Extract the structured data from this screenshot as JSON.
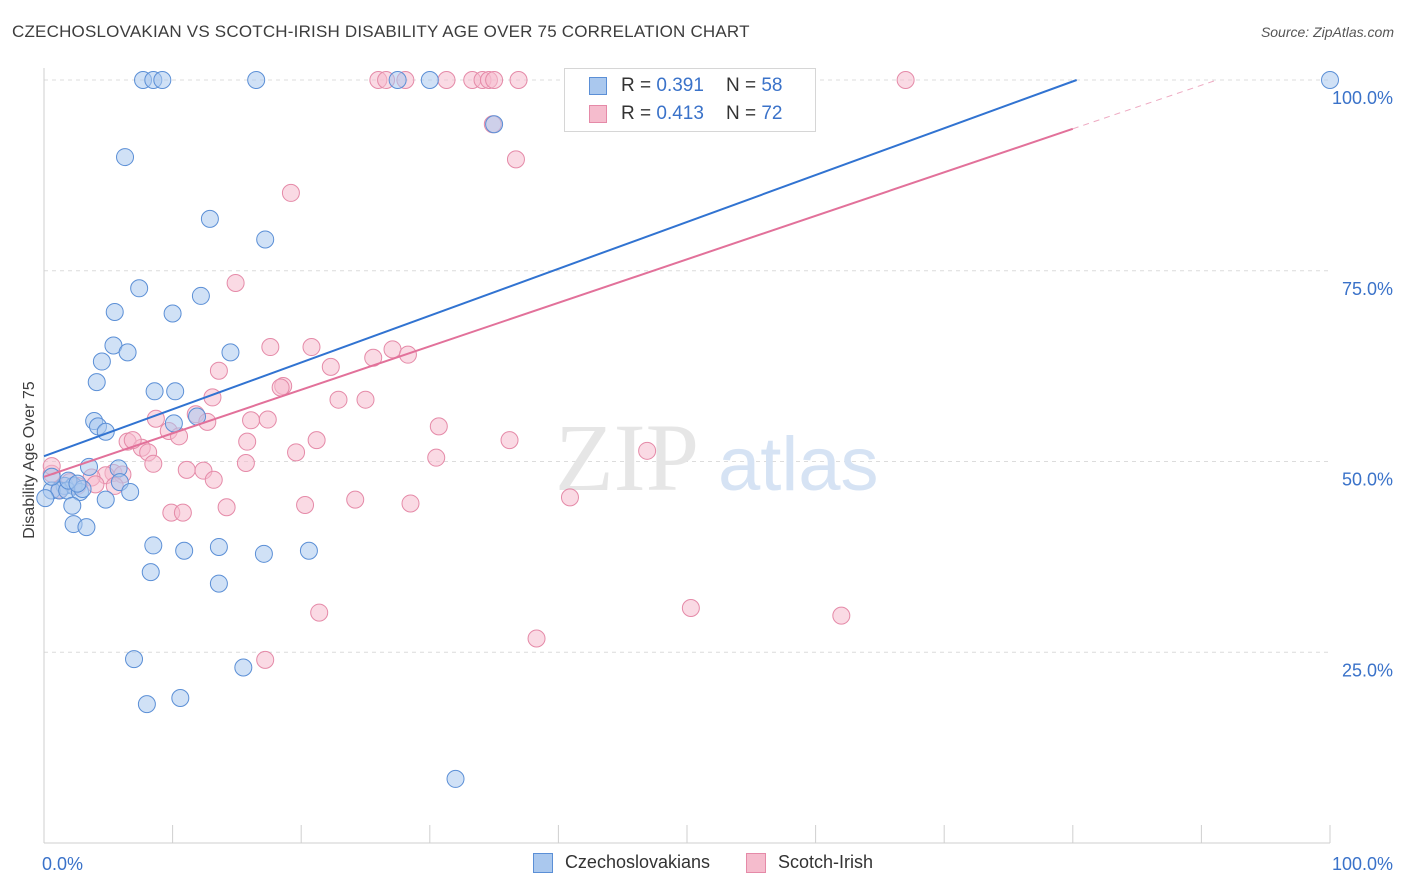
{
  "title": "CZECHOSLOVAKIAN VS SCOTCH-IRISH DISABILITY AGE OVER 75 CORRELATION CHART",
  "source": "Source: ZipAtlas.com",
  "watermark": {
    "zip": "ZIP",
    "atlas": "atlas"
  },
  "legend": {
    "rows": [
      {
        "r_label": "R =",
        "r_value": "0.391",
        "n_label": "N =",
        "n_value": "58"
      },
      {
        "r_label": "R =",
        "r_value": "0.413",
        "n_label": "N =",
        "n_value": "72"
      }
    ]
  },
  "bottom_legend": [
    "Czechoslovakians",
    "Scotch-Irish"
  ],
  "colors": {
    "blue_fill": "#aac8ee",
    "blue_stroke": "#5b8fd6",
    "blue_line": "#3173d1",
    "pink_fill": "#f5bccd",
    "pink_stroke": "#e58aa8",
    "pink_line": "#e2719a",
    "tick_label": "#3a72c9",
    "grid": "#dcdcdc"
  },
  "chart_data": {
    "type": "scatter",
    "title": "CZECHOSLOVAKIAN VS SCOTCH-IRISH DISABILITY AGE OVER 75 CORRELATION CHART",
    "xlabel": "",
    "ylabel": "Disability Age Over 75",
    "xlim": [
      0,
      100
    ],
    "ylim": [
      0,
      100
    ],
    "x_tick_labels": [
      "0.0%",
      "100.0%"
    ],
    "y_tick_labels": [
      "25.0%",
      "50.0%",
      "75.0%",
      "100.0%"
    ],
    "y_ticks": [
      25,
      50,
      75,
      100
    ],
    "grid": true,
    "series": [
      {
        "name": "Czechoslovakians",
        "r": 0.391,
        "n": 58,
        "trend": {
          "x": [
            0,
            80.3
          ],
          "y": [
            50.7,
            100
          ]
        },
        "points": [
          [
            7.7,
            100
          ],
          [
            8.5,
            100
          ],
          [
            9.2,
            100
          ],
          [
            16.5,
            100
          ],
          [
            27.5,
            100
          ],
          [
            30,
            100
          ],
          [
            100,
            100
          ],
          [
            35,
            94.2
          ],
          [
            6.3,
            89.9
          ],
          [
            12.9,
            81.8
          ],
          [
            17.2,
            79.1
          ],
          [
            7.4,
            72.7
          ],
          [
            12.2,
            71.7
          ],
          [
            5.5,
            69.6
          ],
          [
            10,
            69.4
          ],
          [
            5.4,
            65.2
          ],
          [
            6.5,
            64.3
          ],
          [
            14.5,
            64.3
          ],
          [
            4.5,
            63.1
          ],
          [
            4.1,
            60.4
          ],
          [
            8.6,
            59.2
          ],
          [
            10.2,
            59.2
          ],
          [
            11.9,
            55.9
          ],
          [
            3.9,
            55.3
          ],
          [
            10.1,
            55
          ],
          [
            4.2,
            54.6
          ],
          [
            4.8,
            53.9
          ],
          [
            3.5,
            49.3
          ],
          [
            5.8,
            49.1
          ],
          [
            5.9,
            47.3
          ],
          [
            1.6,
            46.8
          ],
          [
            2.3,
            46.8
          ],
          [
            0.6,
            46.2
          ],
          [
            1.2,
            46.2
          ],
          [
            1.8,
            46.2
          ],
          [
            2.8,
            46
          ],
          [
            3,
            46.4
          ],
          [
            6.7,
            46
          ],
          [
            0.1,
            45.2
          ],
          [
            4.8,
            45
          ],
          [
            2.2,
            44.2
          ],
          [
            2.3,
            41.8
          ],
          [
            3.3,
            41.4
          ],
          [
            8.5,
            39
          ],
          [
            10.9,
            38.3
          ],
          [
            13.6,
            38.8
          ],
          [
            17.1,
            37.9
          ],
          [
            20.6,
            38.3
          ],
          [
            8.3,
            35.5
          ],
          [
            13.6,
            34
          ],
          [
            7,
            24.1
          ],
          [
            15.5,
            23
          ],
          [
            8,
            18.2
          ],
          [
            10.6,
            19
          ],
          [
            32,
            8.4
          ],
          [
            0.6,
            48
          ],
          [
            1.9,
            47.5
          ],
          [
            2.6,
            47.1
          ]
        ]
      },
      {
        "name": "Scotch-Irish",
        "r": 0.413,
        "n": 72,
        "trend": {
          "x": [
            0,
            80
          ],
          "y": [
            48,
            93.6
          ]
        },
        "trend_extension": {
          "x": [
            80,
            91.2
          ],
          "y": [
            93.6,
            100
          ]
        },
        "points": [
          [
            26,
            100
          ],
          [
            26.6,
            100
          ],
          [
            28.1,
            100
          ],
          [
            31.3,
            100
          ],
          [
            33.3,
            100
          ],
          [
            34.1,
            100
          ],
          [
            34.6,
            100
          ],
          [
            35,
            100
          ],
          [
            36.9,
            100
          ],
          [
            67,
            100
          ],
          [
            34.9,
            94.2
          ],
          [
            36.7,
            89.6
          ],
          [
            19.2,
            85.2
          ],
          [
            14.9,
            73.4
          ],
          [
            17.6,
            65
          ],
          [
            20.8,
            65
          ],
          [
            27.1,
            64.7
          ],
          [
            28.3,
            64
          ],
          [
            25.6,
            63.6
          ],
          [
            22.3,
            62.4
          ],
          [
            13.6,
            61.9
          ],
          [
            18.6,
            59.9
          ],
          [
            18.4,
            59.7
          ],
          [
            13.1,
            58.4
          ],
          [
            22.9,
            58.1
          ],
          [
            25,
            58.1
          ],
          [
            11.8,
            56.2
          ],
          [
            8.7,
            55.6
          ],
          [
            12.7,
            55.2
          ],
          [
            16.1,
            55.4
          ],
          [
            17.4,
            55.5
          ],
          [
            9.7,
            54
          ],
          [
            10.5,
            53.3
          ],
          [
            6.5,
            52.6
          ],
          [
            15.8,
            52.6
          ],
          [
            21.2,
            52.8
          ],
          [
            36.2,
            52.8
          ],
          [
            7.6,
            51.8
          ],
          [
            8.1,
            51.2
          ],
          [
            19.6,
            51.2
          ],
          [
            46.9,
            51.4
          ],
          [
            30.5,
            50.5
          ],
          [
            30.7,
            54.6
          ],
          [
            8.5,
            49.7
          ],
          [
            15.7,
            49.8
          ],
          [
            11.1,
            48.9
          ],
          [
            12.4,
            48.8
          ],
          [
            5.4,
            48.5
          ],
          [
            6.1,
            48.3
          ],
          [
            4.8,
            48.2
          ],
          [
            3.7,
            47.9
          ],
          [
            0.6,
            48.4
          ],
          [
            0.6,
            49.4
          ],
          [
            2,
            47.3
          ],
          [
            4,
            47
          ],
          [
            5.5,
            46.8
          ],
          [
            1.2,
            46.3
          ],
          [
            2.6,
            46.8
          ],
          [
            24.2,
            45
          ],
          [
            28.5,
            44.5
          ],
          [
            20.3,
            44.3
          ],
          [
            14.2,
            44
          ],
          [
            9.9,
            43.3
          ],
          [
            10.8,
            43.3
          ],
          [
            40.9,
            45.3
          ],
          [
            21.4,
            30.2
          ],
          [
            50.3,
            30.8
          ],
          [
            62,
            29.8
          ],
          [
            38.3,
            26.8
          ],
          [
            17.2,
            24
          ],
          [
            6.9,
            52.8
          ],
          [
            13.2,
            47.6
          ]
        ]
      }
    ]
  }
}
